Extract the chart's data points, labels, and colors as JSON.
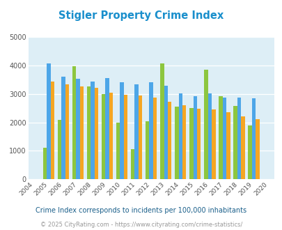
{
  "title": "Stigler Property Crime Index",
  "years": [
    2004,
    2005,
    2006,
    2007,
    2008,
    2009,
    2010,
    2011,
    2012,
    2013,
    2014,
    2015,
    2016,
    2017,
    2018,
    2019,
    2020
  ],
  "stigler": [
    null,
    1100,
    2080,
    3980,
    3250,
    3000,
    2000,
    1050,
    2050,
    4060,
    2550,
    2500,
    3850,
    2920,
    2570,
    1890,
    null
  ],
  "oklahoma": [
    null,
    4060,
    3600,
    3540,
    3430,
    3560,
    3400,
    3340,
    3400,
    3290,
    3010,
    2920,
    3010,
    2870,
    2880,
    2850,
    null
  ],
  "national": [
    null,
    3440,
    3340,
    3250,
    3210,
    3040,
    2960,
    2940,
    2880,
    2720,
    2600,
    2490,
    2460,
    2360,
    2200,
    2120,
    null
  ],
  "stigler_color": "#8dc63f",
  "oklahoma_color": "#4da6e8",
  "national_color": "#f5a623",
  "plot_bg": "#ddeef6",
  "ylim": [
    0,
    5000
  ],
  "yticks": [
    0,
    1000,
    2000,
    3000,
    4000,
    5000
  ],
  "footnote1": "Crime Index corresponds to incidents per 100,000 inhabitants",
  "footnote2": "© 2025 CityRating.com - https://www.cityrating.com/crime-statistics/",
  "title_color": "#1a8fcc",
  "footnote1_color": "#1a5f8a",
  "footnote2_color": "#999999"
}
